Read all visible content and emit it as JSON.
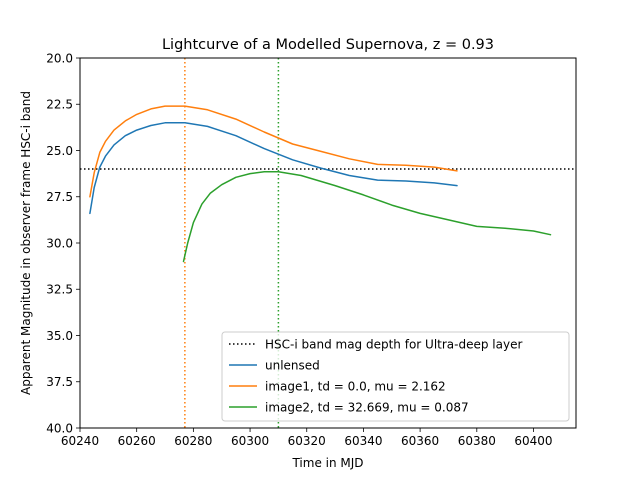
{
  "chart_data": {
    "type": "line",
    "title": "Lightcurve of a Modelled Supernova, z = 0.93",
    "xlabel": "Time in MJD",
    "ylabel": "Apparent Magnitude in observer frame HSC-i band",
    "xlim": [
      60240,
      60415
    ],
    "ylim": [
      20.0,
      40.0
    ],
    "y_inverted": true,
    "x_ticks": [
      60240,
      60260,
      60280,
      60300,
      60320,
      60340,
      60360,
      60380,
      60400
    ],
    "y_ticks": [
      20.0,
      22.5,
      25.0,
      27.5,
      30.0,
      32.5,
      35.0,
      37.5,
      40.0
    ],
    "y_tick_labels": [
      "20.0",
      "22.5",
      "25.0",
      "27.5",
      "30.0",
      "32.5",
      "35.0",
      "37.5",
      "40.0"
    ],
    "legend_position": "lower-right",
    "hline": {
      "label": "HSC-i band mag depth for Ultra-deep layer",
      "y": 26.0,
      "color": "#000000",
      "style": "dotted"
    },
    "vlines": [
      {
        "x": 60277,
        "color": "#ff7f0e",
        "style": "dotted"
      },
      {
        "x": 60310,
        "color": "#2ca02c",
        "style": "dotted"
      }
    ],
    "series": [
      {
        "name": "unlensed",
        "color": "#1f77b4",
        "x": [
          60243.5,
          60245,
          60247,
          60249,
          60252,
          60256,
          60260,
          60265,
          60270,
          60277,
          60285,
          60295,
          60305,
          60315,
          60325,
          60335,
          60345,
          60355,
          60365,
          60373
        ],
        "y": [
          28.4,
          27.0,
          25.9,
          25.3,
          24.7,
          24.2,
          23.9,
          23.65,
          23.5,
          23.5,
          23.7,
          24.2,
          24.9,
          25.5,
          25.95,
          26.35,
          26.6,
          26.65,
          26.75,
          26.9
        ]
      },
      {
        "name": "image1, td = 0.0, mu = 2.162",
        "color": "#ff7f0e",
        "x": [
          60243.5,
          60245,
          60247,
          60249,
          60252,
          60256,
          60260,
          60265,
          60270,
          60277,
          60285,
          60295,
          60305,
          60315,
          60325,
          60335,
          60345,
          60355,
          60365,
          60373
        ],
        "y": [
          27.5,
          26.2,
          25.1,
          24.5,
          23.9,
          23.4,
          23.05,
          22.75,
          22.6,
          22.6,
          22.8,
          23.3,
          24.0,
          24.65,
          25.05,
          25.45,
          25.75,
          25.8,
          25.9,
          26.1
        ]
      },
      {
        "name": "image2, td = 32.669, mu = 0.087",
        "color": "#2ca02c",
        "x": [
          60276.5,
          60278,
          60280,
          60283,
          60286,
          60290,
          60295,
          60300,
          60305,
          60310,
          60318,
          60330,
          60340,
          60350,
          60360,
          60370,
          60380,
          60390,
          60400,
          60406
        ],
        "y": [
          31.0,
          30.0,
          28.9,
          27.9,
          27.3,
          26.85,
          26.45,
          26.25,
          26.15,
          26.15,
          26.35,
          26.9,
          27.4,
          27.95,
          28.4,
          28.75,
          29.1,
          29.2,
          29.35,
          29.55
        ]
      }
    ]
  }
}
